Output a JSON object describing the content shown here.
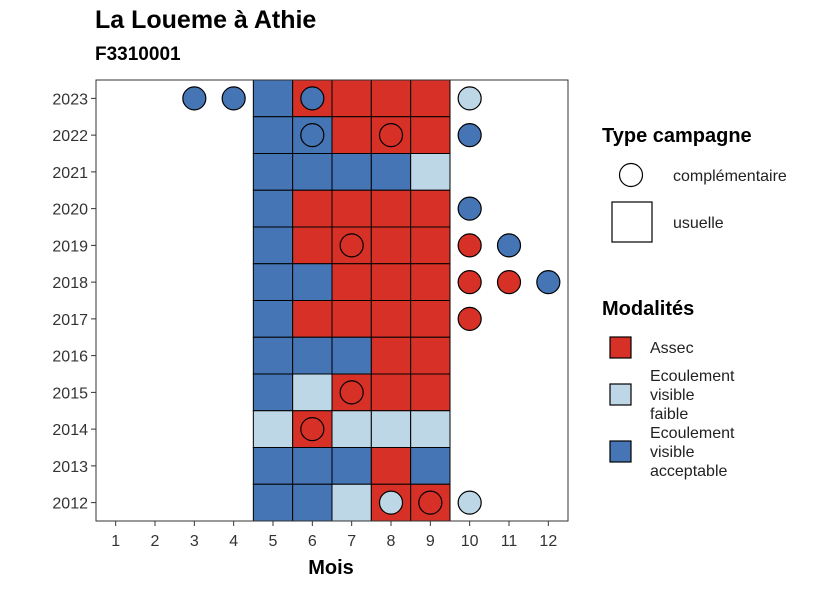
{
  "title": "La Loueme à Athie",
  "subtitle": "F3310001",
  "colors": {
    "assec": "#D73027",
    "faible": "#BDD7E7",
    "acceptable": "#4575B4"
  },
  "chart_data": {
    "type": "heatmap",
    "xlabel": "Mois",
    "ylabel": "",
    "x_ticks": [
      1,
      2,
      3,
      4,
      5,
      6,
      7,
      8,
      9,
      10,
      11,
      12
    ],
    "y_ticks": [
      2012,
      2013,
      2014,
      2015,
      2016,
      2017,
      2018,
      2019,
      2020,
      2021,
      2022,
      2023
    ],
    "xlim": [
      0.5,
      12.5
    ],
    "ylim": [
      2011.5,
      2023.5
    ],
    "usuelle": [
      {
        "year": 2023,
        "values": {
          "5": "acceptable",
          "6": "assec",
          "7": "assec",
          "8": "assec",
          "9": "assec"
        }
      },
      {
        "year": 2022,
        "values": {
          "5": "acceptable",
          "6": "acceptable",
          "7": "assec",
          "8": "assec",
          "9": "assec"
        }
      },
      {
        "year": 2021,
        "values": {
          "5": "acceptable",
          "6": "acceptable",
          "7": "acceptable",
          "8": "acceptable",
          "9": "faible"
        }
      },
      {
        "year": 2020,
        "values": {
          "5": "acceptable",
          "6": "assec",
          "7": "assec",
          "8": "assec",
          "9": "assec"
        }
      },
      {
        "year": 2019,
        "values": {
          "5": "acceptable",
          "6": "assec",
          "7": "assec",
          "8": "assec",
          "9": "assec"
        }
      },
      {
        "year": 2018,
        "values": {
          "5": "acceptable",
          "6": "acceptable",
          "7": "assec",
          "8": "assec",
          "9": "assec"
        }
      },
      {
        "year": 2017,
        "values": {
          "5": "acceptable",
          "6": "assec",
          "7": "assec",
          "8": "assec",
          "9": "assec"
        }
      },
      {
        "year": 2016,
        "values": {
          "5": "acceptable",
          "6": "acceptable",
          "7": "acceptable",
          "8": "assec",
          "9": "assec"
        }
      },
      {
        "year": 2015,
        "values": {
          "5": "acceptable",
          "6": "faible",
          "7": "assec",
          "8": "assec",
          "9": "assec"
        }
      },
      {
        "year": 2014,
        "values": {
          "5": "faible",
          "6": "assec",
          "7": "faible",
          "8": "faible",
          "9": "faible"
        }
      },
      {
        "year": 2013,
        "values": {
          "5": "acceptable",
          "6": "acceptable",
          "7": "acceptable",
          "8": "assec",
          "9": "acceptable"
        }
      },
      {
        "year": 2012,
        "values": {
          "5": "acceptable",
          "6": "acceptable",
          "7": "faible",
          "8": "assec",
          "9": "assec"
        }
      }
    ],
    "complementaire": [
      {
        "year": 2023,
        "month": 3,
        "modalite": "acceptable"
      },
      {
        "year": 2023,
        "month": 4,
        "modalite": "acceptable"
      },
      {
        "year": 2023,
        "month": 6,
        "modalite": "acceptable"
      },
      {
        "year": 2023,
        "month": 10,
        "modalite": "faible"
      },
      {
        "year": 2022,
        "month": 6,
        "modalite": "acceptable"
      },
      {
        "year": 2022,
        "month": 8,
        "modalite": "assec"
      },
      {
        "year": 2022,
        "month": 10,
        "modalite": "acceptable"
      },
      {
        "year": 2020,
        "month": 10,
        "modalite": "acceptable"
      },
      {
        "year": 2019,
        "month": 7,
        "modalite": "assec"
      },
      {
        "year": 2019,
        "month": 10,
        "modalite": "assec"
      },
      {
        "year": 2019,
        "month": 11,
        "modalite": "acceptable"
      },
      {
        "year": 2018,
        "month": 10,
        "modalite": "assec"
      },
      {
        "year": 2018,
        "month": 11,
        "modalite": "assec"
      },
      {
        "year": 2018,
        "month": 12,
        "modalite": "acceptable"
      },
      {
        "year": 2017,
        "month": 10,
        "modalite": "assec"
      },
      {
        "year": 2015,
        "month": 7,
        "modalite": "assec"
      },
      {
        "year": 2014,
        "month": 6,
        "modalite": "assec"
      },
      {
        "year": 2012,
        "month": 8,
        "modalite": "faible"
      },
      {
        "year": 2012,
        "month": 9,
        "modalite": "assec"
      },
      {
        "year": 2012,
        "month": 10,
        "modalite": "faible"
      }
    ],
    "legend": {
      "type_title": "Type campagne",
      "type_items": [
        {
          "shape": "circle",
          "label": "complémentaire"
        },
        {
          "shape": "square",
          "label": "usuelle"
        }
      ],
      "mod_title": "Modalités",
      "mod_items": [
        {
          "key": "assec",
          "lines": [
            "Assec"
          ]
        },
        {
          "key": "faible",
          "lines": [
            "Ecoulement",
            "visible",
            "faible"
          ]
        },
        {
          "key": "acceptable",
          "lines": [
            "Ecoulement",
            "visible",
            "acceptable"
          ]
        }
      ],
      "position": "right"
    }
  }
}
